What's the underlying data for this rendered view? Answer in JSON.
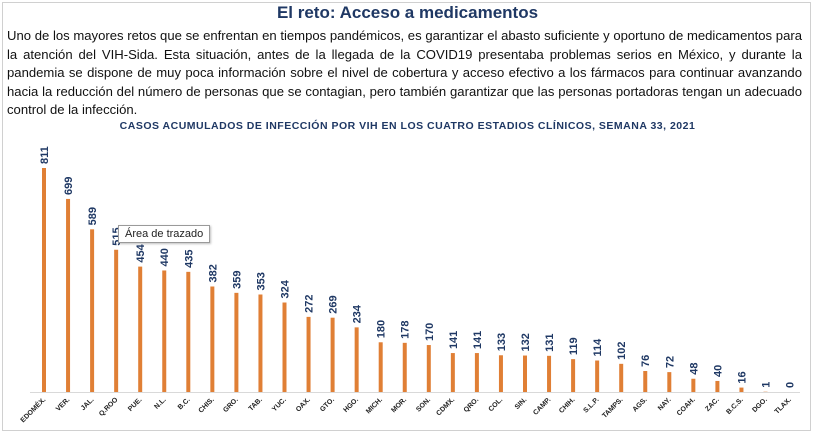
{
  "page": {
    "title": "El reto: Acceso a medicamentos",
    "paragraph": "Uno de los mayores retos que se enfrentan en tiempos pandémicos, es garantizar el abasto suficiente y oportuno de medicamentos para la atención del VIH-Sida. Esta situación, antes de la llegada de la COVID19 presentaba problemas serios en México, y durante la pandemia se dispone de muy poca información sobre el nivel de cobertura y acceso efectivo a los fármacos para continuar avanzando hacia la reducción del número de personas que se contagian, pero también garantizar que las personas portadoras tengan un adecuado control de la infección."
  },
  "tooltip": {
    "text": "Área de trazado"
  },
  "chart_data": {
    "type": "bar",
    "title": "CASOS ACUMULADOS DE INFECCIÓN POR VIH EN LOS CUATRO ESTADIOS CLÍNICOS, SEMANA 33, 2021",
    "xlabel": "",
    "ylabel": "",
    "categories": [
      "EDOMÉX.",
      "VER.",
      "JAL.",
      "Q.ROO",
      "PUE.",
      "N.L.",
      "B.C.",
      "CHIS.",
      "GRO.",
      "TAB.",
      "YUC.",
      "OAX.",
      "GTO.",
      "HGO.",
      "MICH.",
      "MOR.",
      "SON.",
      "CDMX.",
      "QRO.",
      "COL.",
      "SIN.",
      "CAMP.",
      "CHIH.",
      "S.L.P.",
      "TAMPS.",
      "AGS.",
      "NAY.",
      "COAH.",
      "ZAC.",
      "B.C.S.",
      "DGO.",
      "TLAX."
    ],
    "values": [
      811,
      699,
      589,
      515,
      454,
      440,
      435,
      382,
      359,
      353,
      324,
      272,
      269,
      234,
      180,
      178,
      170,
      141,
      141,
      133,
      132,
      131,
      119,
      114,
      102,
      76,
      72,
      48,
      40,
      16,
      1,
      0
    ],
    "value_labels": [
      "811",
      "699",
      "589",
      "515",
      "454",
      "440",
      "435",
      "382",
      "359",
      "353",
      "324",
      "272",
      "269",
      "234",
      "180",
      "178",
      "170",
      "141",
      "141",
      "133",
      "132",
      "131",
      "119",
      "114",
      "102",
      "76",
      "72",
      "48",
      "40",
      "16",
      "1",
      "0"
    ],
    "ylim": [
      0,
      811
    ],
    "grid": false,
    "legend": "none",
    "bar_color": "#e07f35",
    "label_color": "#1f3864"
  }
}
